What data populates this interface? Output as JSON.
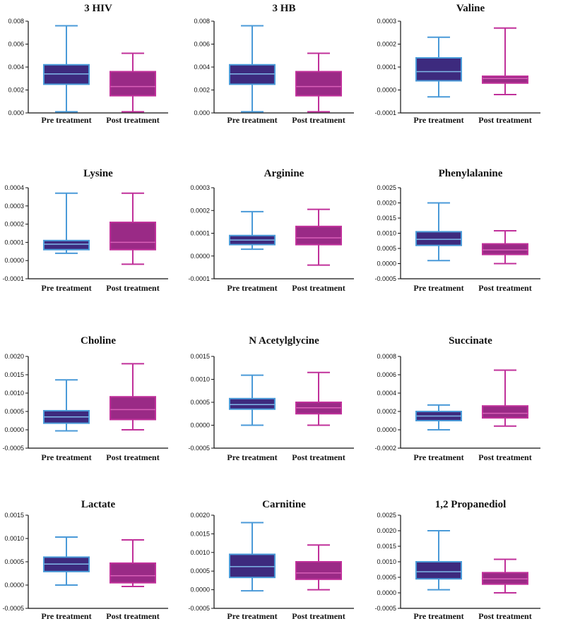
{
  "colors": {
    "pre_fill": "#3d2a7e",
    "pre_line": "#4a9ad8",
    "post_fill": "#9a2a86",
    "post_line": "#c0309a"
  },
  "chart_data": [
    {
      "type": "box",
      "title": "3 HIV",
      "categories": [
        "Pre treatment",
        "Post treatment"
      ],
      "ylim": [
        0,
        0.008
      ],
      "yticks": [
        "0.000",
        "0.002",
        "0.004",
        "0.006",
        "0.008"
      ],
      "boxes": [
        {
          "min": 0.0001,
          "q1": 0.0025,
          "median": 0.0034,
          "q3": 0.0042,
          "max": 0.0076
        },
        {
          "min": 0.0001,
          "q1": 0.0015,
          "median": 0.0023,
          "q3": 0.0036,
          "max": 0.0052
        }
      ]
    },
    {
      "type": "box",
      "title": "3 HB",
      "categories": [
        "Pre treatment",
        "Post treatment"
      ],
      "ylim": [
        0,
        0.008
      ],
      "yticks": [
        "0.000",
        "0.002",
        "0.004",
        "0.006",
        "0.008"
      ],
      "boxes": [
        {
          "min": 0.0001,
          "q1": 0.0025,
          "median": 0.0034,
          "q3": 0.0042,
          "max": 0.0076
        },
        {
          "min": 0.0001,
          "q1": 0.0015,
          "median": 0.0023,
          "q3": 0.0036,
          "max": 0.0052
        }
      ]
    },
    {
      "type": "box",
      "title": "Valine",
      "categories": [
        "Pre treatment",
        "Post treatment"
      ],
      "ylim": [
        -0.0001,
        0.0003
      ],
      "yticks": [
        "-0.0001",
        "0.0000",
        "0.0001",
        "0.0002",
        "0.0003"
      ],
      "boxes": [
        {
          "min": -3e-05,
          "q1": 4e-05,
          "median": 8e-05,
          "q3": 0.00014,
          "max": 0.00023
        },
        {
          "min": -2e-05,
          "q1": 3e-05,
          "median": 5e-05,
          "q3": 6e-05,
          "max": 0.00027
        }
      ]
    },
    {
      "type": "box",
      "title": "Lysine",
      "categories": [
        "Pre treatment",
        "Post treatment"
      ],
      "ylim": [
        -0.0001,
        0.0004
      ],
      "yticks": [
        "-0.0001",
        "0.0000",
        "0.0001",
        "0.0002",
        "0.0003",
        "0.0004"
      ],
      "boxes": [
        {
          "min": 4e-05,
          "q1": 6e-05,
          "median": 9e-05,
          "q3": 0.00011,
          "max": 0.00037
        },
        {
          "min": -2e-05,
          "q1": 6e-05,
          "median": 0.0001,
          "q3": 0.00021,
          "max": 0.00037
        }
      ]
    },
    {
      "type": "box",
      "title": "Arginine",
      "categories": [
        "Pre treatment",
        "Post treatment"
      ],
      "ylim": [
        -0.0001,
        0.0003
      ],
      "yticks": [
        "-0.0001",
        "0.0000",
        "0.0001",
        "0.0002",
        "0.0003"
      ],
      "boxes": [
        {
          "min": 3e-05,
          "q1": 5e-05,
          "median": 7e-05,
          "q3": 9e-05,
          "max": 0.000195
        },
        {
          "min": -4e-05,
          "q1": 5e-05,
          "median": 8e-05,
          "q3": 0.00013,
          "max": 0.000205
        }
      ]
    },
    {
      "type": "box",
      "title": "Phenylalanine",
      "categories": [
        "Pre treatment",
        "Post treatment"
      ],
      "ylim": [
        -0.0005,
        0.0025
      ],
      "yticks": [
        "-0.0005",
        "0.0000",
        "0.0005",
        "0.0010",
        "0.0015",
        "0.0020",
        "0.0025"
      ],
      "boxes": [
        {
          "min": 0.0001,
          "q1": 0.0006,
          "median": 0.0008,
          "q3": 0.00105,
          "max": 0.002
        },
        {
          "min": 0.0,
          "q1": 0.0003,
          "median": 0.00045,
          "q3": 0.00065,
          "max": 0.00108
        }
      ]
    },
    {
      "type": "box",
      "title": "Choline",
      "categories": [
        "Pre treatment",
        "Post treatment"
      ],
      "ylim": [
        -0.0005,
        0.002
      ],
      "yticks": [
        "-0.0005",
        "0.0000",
        "0.0005",
        "0.0010",
        "0.0015",
        "0.0020"
      ],
      "boxes": [
        {
          "min": -3e-05,
          "q1": 0.00018,
          "median": 0.00035,
          "q3": 0.00052,
          "max": 0.00136
        },
        {
          "min": 0.0,
          "q1": 0.00028,
          "median": 0.00055,
          "q3": 0.0009,
          "max": 0.0018
        }
      ]
    },
    {
      "type": "box",
      "title": "N Acetylglycine",
      "categories": [
        "Pre treatment",
        "Post treatment"
      ],
      "ylim": [
        -0.0005,
        0.0015
      ],
      "yticks": [
        "-0.0005",
        "0.0000",
        "0.0005",
        "0.0010",
        "0.0015"
      ],
      "boxes": [
        {
          "min": 0.0,
          "q1": 0.00035,
          "median": 0.00045,
          "q3": 0.00058,
          "max": 0.00109
        },
        {
          "min": 0.0,
          "q1": 0.00025,
          "median": 0.00038,
          "q3": 0.0005,
          "max": 0.00115
        }
      ]
    },
    {
      "type": "box",
      "title": "Succinate",
      "categories": [
        "Pre treatment",
        "Post treatment"
      ],
      "ylim": [
        -0.0002,
        0.0008
      ],
      "yticks": [
        "-0.0002",
        "0.0000",
        "0.0002",
        "0.0004",
        "0.0006",
        "0.0008"
      ],
      "boxes": [
        {
          "min": 0.0,
          "q1": 0.0001,
          "median": 0.00015,
          "q3": 0.0002,
          "max": 0.00027
        },
        {
          "min": 4e-05,
          "q1": 0.00013,
          "median": 0.00018,
          "q3": 0.00026,
          "max": 0.00065
        }
      ]
    },
    {
      "type": "box",
      "title": "Lactate",
      "categories": [
        "Pre treatment",
        "Post treatment"
      ],
      "ylim": [
        -0.0005,
        0.0015
      ],
      "yticks": [
        "-0.0005",
        "0.0000",
        "0.0005",
        "0.0010",
        "0.0015"
      ],
      "boxes": [
        {
          "min": 0.0,
          "q1": 0.00029,
          "median": 0.00045,
          "q3": 0.0006,
          "max": 0.00103
        },
        {
          "min": -3e-05,
          "q1": 5e-05,
          "median": 0.0002,
          "q3": 0.00047,
          "max": 0.00097
        }
      ]
    },
    {
      "type": "box",
      "title": "Carnitine",
      "categories": [
        "Pre treatment",
        "Post treatment"
      ],
      "ylim": [
        -0.0005,
        0.002
      ],
      "yticks": [
        "-0.0005",
        "0.0000",
        "0.0005",
        "0.0010",
        "0.0015",
        "0.0020"
      ],
      "boxes": [
        {
          "min": -3e-05,
          "q1": 0.00033,
          "median": 0.00062,
          "q3": 0.00095,
          "max": 0.0018
        },
        {
          "min": 0.0,
          "q1": 0.00028,
          "median": 0.00045,
          "q3": 0.00075,
          "max": 0.0012
        }
      ]
    },
    {
      "type": "box",
      "title": "1,2 Propanediol",
      "categories": [
        "Pre treatment",
        "Post treatment"
      ],
      "ylim": [
        -0.0005,
        0.0025
      ],
      "yticks": [
        "-0.0005",
        "0.0000",
        "0.0005",
        "0.0010",
        "0.0015",
        "0.0020",
        "0.0025"
      ],
      "boxes": [
        {
          "min": 0.0001,
          "q1": 0.00045,
          "median": 0.00068,
          "q3": 0.001,
          "max": 0.002
        },
        {
          "min": 0.0,
          "q1": 0.00028,
          "median": 0.00045,
          "q3": 0.00065,
          "max": 0.00108
        }
      ]
    }
  ]
}
